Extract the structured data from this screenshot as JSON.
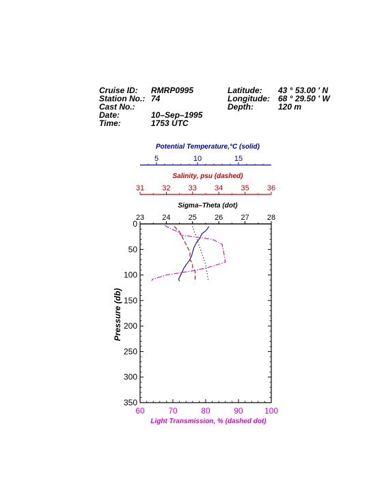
{
  "header": {
    "cruise_label": "Cruise ID:",
    "cruise_value": "RMRP0995",
    "station_label": "Station No.:",
    "station_value": "74",
    "cast_label": "Cast No.:",
    "cast_value": "",
    "date_label": "Date:",
    "date_value": "10–Sep–1995",
    "time_label": "Time:",
    "time_value": "1753 UTC",
    "lat_label": "Latitude:",
    "lat_value": "43 ° 53.00 ' N",
    "lon_label": "Longitude:",
    "lon_value": "68 ° 29.50 ' W",
    "depth_label": "Depth:",
    "depth_value": "120 m"
  },
  "colors": {
    "temperature": "#0000aa",
    "salinity": "#cc0000",
    "sigma": "#000000",
    "transmission": "#dd00dd"
  },
  "chart_data": {
    "type": "line",
    "ylabel": "Pressure (db)",
    "ylim": [
      350,
      0
    ],
    "y_ticks": [
      "0",
      "50",
      "100",
      "150",
      "200",
      "250",
      "300",
      "350"
    ],
    "grid": false,
    "axes": {
      "temperature": {
        "label": "Potential Temperature,°C (solid)",
        "range": [
          3,
          19
        ],
        "ticks": [
          "5",
          "10",
          "15"
        ],
        "tick_values": [
          5,
          10,
          15
        ]
      },
      "salinity": {
        "label": "Salinity, psu  (dashed)",
        "range": [
          31,
          36
        ],
        "ticks": [
          "31",
          "32",
          "33",
          "34",
          "35",
          "36"
        ]
      },
      "sigma": {
        "label": "Sigma–Theta (dot)",
        "range": [
          23,
          28
        ],
        "ticks": [
          "23",
          "24",
          "25",
          "26",
          "27",
          "28"
        ]
      },
      "transmission": {
        "label": "Light Transmission, % (dashed dot)",
        "range": [
          60,
          100
        ],
        "ticks": [
          "60",
          "70",
          "80",
          "90",
          "100"
        ]
      }
    },
    "series": [
      {
        "name": "Potential Temperature",
        "axis": "temperature",
        "style": "solid",
        "points": [
          [
            11.4,
            5
          ],
          [
            11.1,
            12
          ],
          [
            10.5,
            20
          ],
          [
            10.3,
            28
          ],
          [
            9.9,
            36
          ],
          [
            9.6,
            45
          ],
          [
            9.4,
            55
          ],
          [
            9.3,
            62
          ],
          [
            9.0,
            72
          ],
          [
            8.6,
            80
          ],
          [
            8.3,
            88
          ],
          [
            8.1,
            95
          ],
          [
            7.9,
            102
          ],
          [
            7.7,
            108
          ],
          [
            7.8,
            112
          ]
        ]
      },
      {
        "name": "Salinity",
        "axis": "salinity",
        "style": "dashed",
        "points": [
          [
            32.3,
            5
          ],
          [
            32.5,
            15
          ],
          [
            32.6,
            25
          ],
          [
            32.7,
            35
          ],
          [
            32.8,
            45
          ],
          [
            32.9,
            55
          ],
          [
            32.9,
            62
          ],
          [
            32.9,
            70
          ],
          [
            33.0,
            78
          ],
          [
            33.0,
            85
          ],
          [
            33.1,
            92
          ],
          [
            33.1,
            100
          ],
          [
            33.1,
            106
          ],
          [
            33.1,
            112
          ]
        ]
      },
      {
        "name": "Sigma-Theta",
        "axis": "sigma",
        "style": "dotted",
        "points": [
          [
            25.0,
            5
          ],
          [
            25.1,
            20
          ],
          [
            25.2,
            35
          ],
          [
            25.3,
            50
          ],
          [
            25.4,
            65
          ],
          [
            25.5,
            80
          ],
          [
            25.55,
            95
          ],
          [
            25.6,
            112
          ]
        ]
      },
      {
        "name": "Light Transmission",
        "axis": "transmission",
        "style": "dashdot",
        "points": [
          [
            67.5,
            3
          ],
          [
            69.5,
            10
          ],
          [
            71.5,
            15
          ],
          [
            72.5,
            22
          ],
          [
            76,
            25
          ],
          [
            82,
            30
          ],
          [
            85,
            40
          ],
          [
            85.5,
            55
          ],
          [
            86,
            75
          ],
          [
            82,
            83
          ],
          [
            79,
            88
          ],
          [
            76,
            92
          ],
          [
            72,
            96
          ],
          [
            68,
            100
          ],
          [
            66,
            104
          ],
          [
            64,
            108
          ],
          [
            63.5,
            111
          ]
        ]
      }
    ]
  }
}
